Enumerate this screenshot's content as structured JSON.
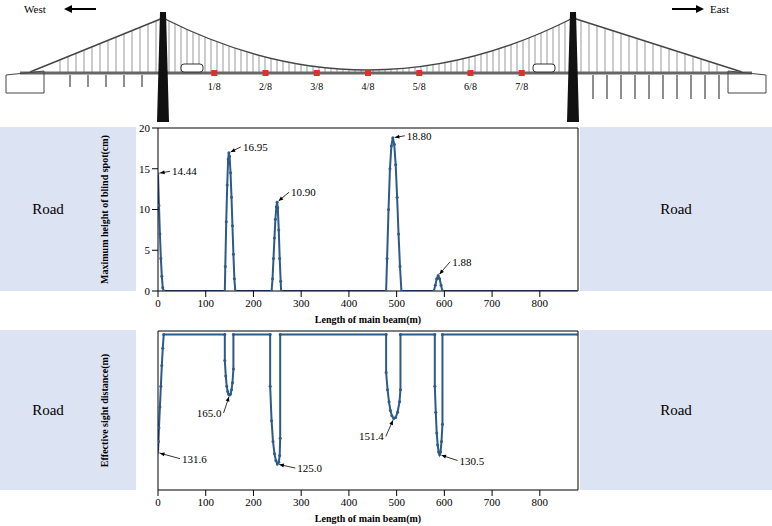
{
  "diagram": {
    "west": "West",
    "east": "East",
    "marks": [
      "1/8",
      "2/8",
      "3/8",
      "4/8",
      "5/8",
      "6/8",
      "7/8"
    ]
  },
  "road_label": "Road",
  "chart_data": [
    {
      "type": "line",
      "x_label": "Length of main beam(m)",
      "y_label": "Maximum height of blind spot(cm)",
      "color": "#2e5a88",
      "marker": "circle",
      "grid": false,
      "xlim": [
        0,
        880
      ],
      "xticks": [
        0,
        100,
        200,
        300,
        400,
        500,
        600,
        700,
        800
      ],
      "ylim": [
        0,
        20
      ],
      "yticks": [
        0,
        5,
        10,
        15,
        20
      ],
      "x": [
        0,
        2,
        4,
        6,
        8,
        10,
        12,
        140,
        141,
        143,
        145,
        147,
        148.5,
        150,
        152,
        154,
        156,
        158,
        160,
        162,
        238,
        240,
        242,
        244,
        246,
        248,
        249.5,
        251,
        253,
        255,
        257,
        258,
        478,
        480,
        483,
        486,
        489,
        492,
        495,
        498,
        501,
        504,
        507,
        510,
        578,
        581,
        584,
        587,
        590,
        593,
        596,
        880
      ],
      "values": [
        14.44,
        10.5,
        7,
        4,
        1.8,
        0.4,
        0,
        0,
        3,
        8.5,
        13,
        16.2,
        16.95,
        16.5,
        14.5,
        11.5,
        8,
        4.5,
        1.5,
        0,
        0,
        1.5,
        4,
        6.5,
        8.8,
        10.3,
        10.9,
        10.2,
        7.5,
        4,
        1.2,
        0,
        0,
        4,
        10,
        15,
        17.8,
        18.8,
        18,
        15.5,
        11.5,
        7,
        3,
        0,
        0,
        0.7,
        1.5,
        1.88,
        1.5,
        0.7,
        0,
        0
      ],
      "annotations": [
        {
          "x": 0,
          "value": 14.44,
          "label": "14.44"
        },
        {
          "x": 148.5,
          "value": 16.95,
          "label": "16.95"
        },
        {
          "x": 249.5,
          "value": 10.9,
          "label": "10.90"
        },
        {
          "x": 492,
          "value": 18.8,
          "label": "18.80"
        },
        {
          "x": 587,
          "value": 1.88,
          "label": "1.88"
        }
      ]
    },
    {
      "type": "line",
      "x_label": "Length of main beam(m)",
      "y_label": "Effective sight distance(m)",
      "color": "#2e5a88",
      "marker": "circle",
      "grid": false,
      "tick_labels": "x",
      "xlim": [
        0,
        880
      ],
      "xticks": [
        0,
        100,
        200,
        300,
        400,
        500,
        600,
        700,
        800
      ],
      "ylim": [
        110,
        202
      ],
      "x": [
        0,
        1,
        2,
        4,
        6,
        8,
        10,
        12,
        140,
        140,
        142,
        144,
        146,
        148,
        150,
        152,
        154,
        156,
        158,
        158,
        235,
        235,
        238,
        241,
        244,
        247,
        250,
        253,
        255,
        256,
        256,
        478,
        478,
        481,
        484,
        487,
        490,
        494,
        498,
        502,
        506,
        508,
        508,
        580,
        580,
        582,
        584,
        586,
        588,
        590,
        592,
        594,
        596,
        596,
        880
      ],
      "values": [
        131.6,
        138,
        146,
        158,
        170,
        182,
        192,
        200,
        200,
        185,
        176,
        170,
        167,
        165.4,
        165,
        165.6,
        168,
        172,
        180,
        200,
        200,
        170,
        150,
        138,
        131,
        127,
        125,
        126,
        130,
        140,
        200,
        200,
        178,
        168,
        161,
        156,
        153,
        151.4,
        152,
        155,
        161,
        168,
        200,
        200,
        170,
        155,
        143,
        136,
        132,
        130.5,
        132,
        138,
        148,
        200,
        200
      ],
      "annotations": [
        {
          "x": 0,
          "value": 131.6,
          "label": "131.6"
        },
        {
          "x": 150,
          "value": 165,
          "label": "165.0"
        },
        {
          "x": 250,
          "value": 125,
          "label": "125.0"
        },
        {
          "x": 494,
          "value": 151.4,
          "label": "151.4"
        },
        {
          "x": 590,
          "value": 130.5,
          "label": "130.5"
        }
      ]
    }
  ]
}
